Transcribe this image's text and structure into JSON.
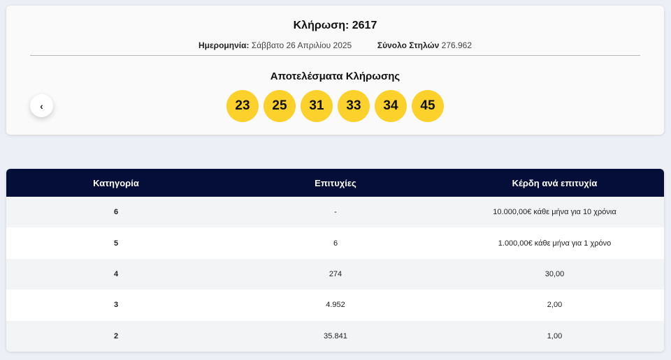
{
  "draw": {
    "title": "Κλήρωση: 2617",
    "date_label": "Ημερομηνία:",
    "date_value": "Σάββατο 26 Απριλίου 2025",
    "columns_label": "Σύνολο Στηλών",
    "columns_value": "276.962",
    "results_title": "Αποτελέσματα Κλήρωσης",
    "numbers": [
      "23",
      "25",
      "31",
      "33",
      "34",
      "45"
    ],
    "prev_icon": "chevron-left-icon"
  },
  "table": {
    "headers": [
      "Κατηγορία",
      "Επιτυχίες",
      "Κέρδη ανά επιτυχία"
    ],
    "rows": [
      {
        "category": "6",
        "winners": "-",
        "prize": "10.000,00€ κάθε μήνα για 10 χρόνια"
      },
      {
        "category": "5",
        "winners": "6",
        "prize": "1.000,00€ κάθε μήνα για 1 χρόνο"
      },
      {
        "category": "4",
        "winners": "274",
        "prize": "30,00"
      },
      {
        "category": "3",
        "winners": "4.952",
        "prize": "2,00"
      },
      {
        "category": "2",
        "winners": "35.841",
        "prize": "1,00"
      }
    ]
  },
  "colors": {
    "ball": "#fdd12b",
    "table_header": "#050e38",
    "page_background": "#eceff6"
  }
}
